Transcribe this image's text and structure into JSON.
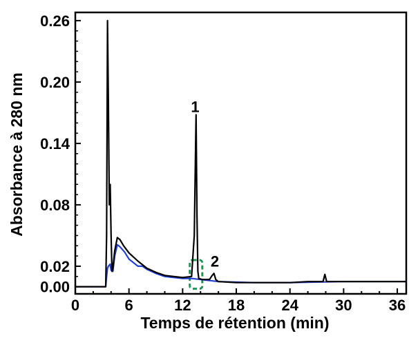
{
  "chart_data": {
    "type": "line",
    "title": "",
    "xlabel": "Temps de rétention (min)",
    "ylabel": "Absorbance à 280 nm",
    "xlim": [
      0,
      37
    ],
    "ylim": [
      -0.007,
      0.268
    ],
    "x_ticks": [
      0,
      6,
      12,
      18,
      24,
      30,
      36
    ],
    "x_tick_labels": [
      "0",
      "6",
      "12",
      "18",
      "24",
      "30",
      "36"
    ],
    "y_ticks": [
      0.0,
      0.02,
      0.08,
      0.14,
      0.2,
      0.26
    ],
    "y_tick_labels": [
      "0.00",
      "0.02",
      "0.08",
      "0.14",
      "0.20",
      "0.26"
    ],
    "grid": false,
    "annotations": [
      {
        "text": "1",
        "x": 13.4,
        "y": 0.168
      },
      {
        "text": "2",
        "x": 15.6,
        "y": 0.017
      }
    ],
    "highlight_box": {
      "x": [
        12.8,
        14.2
      ],
      "y": [
        -0.002,
        0.026
      ],
      "color": "#1a9850"
    },
    "series": [
      {
        "color": "#000000",
        "x": [
          0,
          3.4,
          3.5,
          3.6,
          3.7,
          3.8,
          3.9,
          4.0,
          4.1,
          4.2,
          4.4,
          4.7,
          5.0,
          5.4,
          6.0,
          7.0,
          8.0,
          9.0,
          10.0,
          11.0,
          12.0,
          13.0,
          13.3,
          13.5,
          13.6,
          13.7,
          13.8,
          14.2,
          15.0,
          15.3,
          15.5,
          15.7,
          16.0,
          18.0,
          20.0,
          24.0,
          26.0,
          27.7,
          27.9,
          28.1,
          30.0,
          32.0,
          34.0,
          36.0,
          37.0
        ],
        "y": [
          0.0,
          0.0,
          0.05,
          0.26,
          0.18,
          0.08,
          0.1,
          0.05,
          0.015,
          0.018,
          0.035,
          0.048,
          0.046,
          0.04,
          0.033,
          0.025,
          0.018,
          0.014,
          0.011,
          0.01,
          0.009,
          0.01,
          0.05,
          0.168,
          0.07,
          0.015,
          0.008,
          0.007,
          0.007,
          0.011,
          0.013,
          0.007,
          0.005,
          0.004,
          0.004,
          0.004,
          0.005,
          0.005,
          0.012,
          0.005,
          0.005,
          0.005,
          0.005,
          0.005,
          0.005
        ]
      },
      {
        "color": "#1f3fd6",
        "x": [
          0,
          3.4,
          3.5,
          3.6,
          3.7,
          3.8,
          3.9,
          4.0,
          4.2,
          4.4,
          4.7,
          5.0,
          5.5,
          6.0,
          7.0,
          7.5,
          8.0,
          9.0,
          10.0,
          11.0,
          12.0,
          13.0,
          14.0,
          15.0,
          16.0,
          20.0,
          24.0,
          30.0,
          36.0,
          37.0
        ],
        "y": [
          0.0,
          0.0,
          0.01,
          0.018,
          0.02,
          0.021,
          0.022,
          0.016,
          0.015,
          0.03,
          0.041,
          0.039,
          0.034,
          0.027,
          0.02,
          0.02,
          0.017,
          0.013,
          0.01,
          0.009,
          0.008,
          0.008,
          0.007,
          0.006,
          0.005,
          0.004,
          0.004,
          0.005,
          0.005,
          0.005
        ]
      }
    ]
  }
}
